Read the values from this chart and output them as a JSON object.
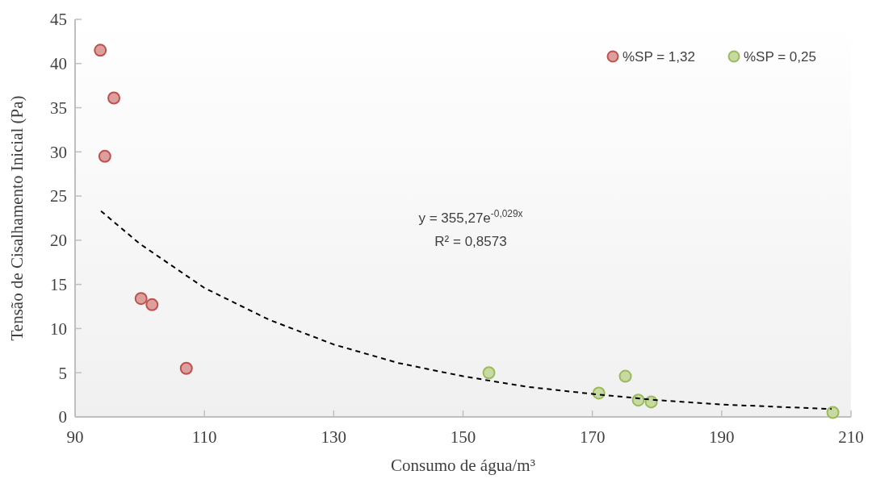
{
  "chart_data": {
    "type": "scatter",
    "xlabel": "Consumo de água/m³",
    "ylabel": "Tensão de Cisalhamento Inicial (Pa)",
    "xlim": [
      90,
      210
    ],
    "xticks": [
      90,
      110,
      130,
      150,
      170,
      190,
      210
    ],
    "ylim": [
      0,
      45
    ],
    "yticks": [
      0,
      5,
      10,
      15,
      20,
      25,
      30,
      35,
      40,
      45
    ],
    "grid": false,
    "legend": "top right",
    "marker": "circle",
    "annotations": [
      "y = 355,27e$^{-0,029x}$",
      "R² = 0,8573"
    ],
    "series": [
      {
        "name": "%SP = 1,32",
        "color": "#c0504d",
        "x": [
          93.9,
          96,
          94.6,
          100.2,
          101.9,
          107.2
        ],
        "values": [
          41.5,
          36.1,
          29.5,
          13.4,
          12.7,
          5.5
        ]
      },
      {
        "name": "%SP = 0,25",
        "color": "#9bbb59",
        "x": [
          154,
          171,
          175.1,
          177.1,
          179.1,
          207.2
        ],
        "values": [
          5.0,
          2.7,
          4.6,
          1.9,
          1.7,
          0.5
        ]
      },
      {
        "type": "line",
        "color": "#000000",
        "line_style": "dashed",
        "marker": "none",
        "x": [
          94,
          100,
          110,
          120,
          130,
          140,
          150,
          160,
          170,
          180,
          190,
          200,
          207
        ],
        "values": [
          23.3,
          19.6,
          14.6,
          11.0,
          8.2,
          6.1,
          4.6,
          3.4,
          2.6,
          1.9,
          1.4,
          1.1,
          0.9
        ]
      }
    ]
  }
}
